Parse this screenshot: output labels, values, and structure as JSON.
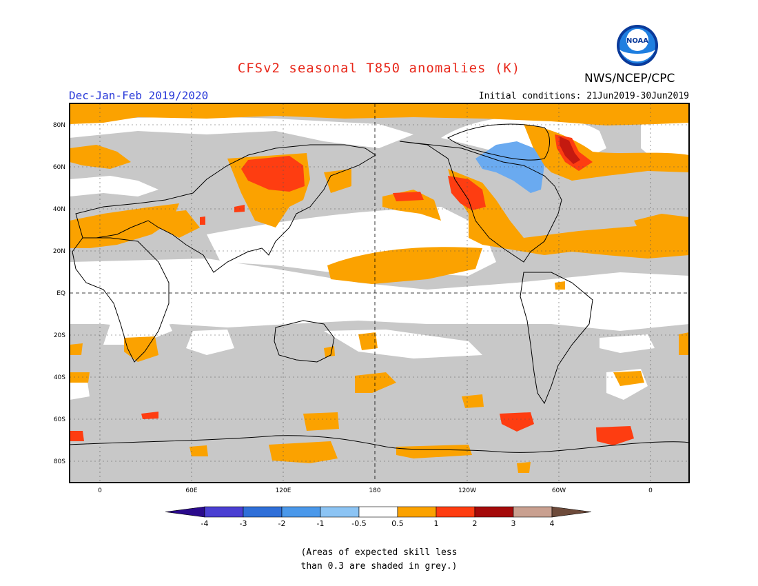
{
  "title": "CFSv2 seasonal T850 anomalies (K)",
  "agency": "NWS/NCEP/CPC",
  "logo_text": "NOAA",
  "season": "Dec-Jan-Feb 2019/2020",
  "initial_conditions": "Initial conditions: 21Jun2019-30Jun2019",
  "lat_labels": [
    "80N",
    "60N",
    "40N",
    "20N",
    "EQ",
    "20S",
    "40S",
    "60S",
    "80S"
  ],
  "lon_labels": [
    "0",
    "60E",
    "120E",
    "180",
    "120W",
    "60W",
    "0"
  ],
  "colorbar": {
    "labels": [
      "-4",
      "-3",
      "-2",
      "-1",
      "-0.5",
      "0.5",
      "1",
      "2",
      "3",
      "4"
    ],
    "colors": [
      "#2a0a8c",
      "#4a3fd2",
      "#2f6fd8",
      "#4a98ea",
      "#8cc4f4",
      "#ffffff",
      "#fba200",
      "#fe3d11",
      "#a40a0a",
      "#c9a090",
      "#6d4a3a"
    ]
  },
  "footnote": [
    "(Areas of expected skill less",
    "than 0.3 are shaded in grey.)"
  ],
  "colors": {
    "grey_skill": "#c8c8c8",
    "title": "#e8291c",
    "season": "#2a3ad9"
  }
}
